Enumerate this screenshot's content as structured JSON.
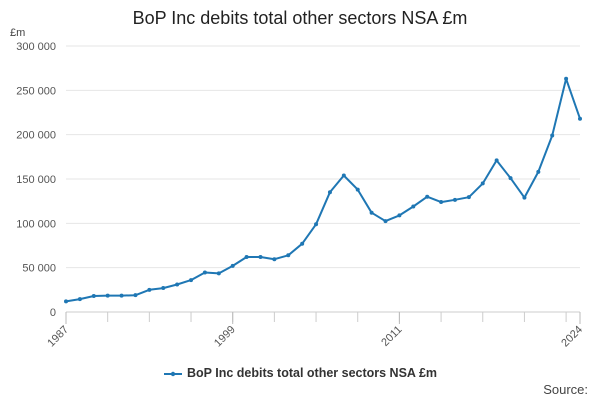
{
  "chart_data": {
    "type": "line",
    "title": "BoP Inc debits total other sectors NSA £m",
    "ylabel": "£m",
    "xlabel": "",
    "ylim": [
      0,
      300000
    ],
    "yticks": [
      0,
      50000,
      100000,
      150000,
      200000,
      250000,
      300000
    ],
    "ytick_labels": [
      "0",
      "50 000",
      "100 000",
      "150 000",
      "200 000",
      "250 000",
      "300 000"
    ],
    "xticks": [
      1987,
      1999,
      2011,
      2024
    ],
    "xtick_labels": [
      "1987",
      "1999",
      "2011",
      "2024"
    ],
    "xlim": [
      1987,
      2024
    ],
    "grid": true,
    "legend_position": "bottom",
    "series": [
      {
        "name": "BoP Inc debits total other sectors NSA £m",
        "color": "#1f77b4",
        "x": [
          1987,
          1988,
          1989,
          1990,
          1991,
          1992,
          1993,
          1994,
          1995,
          1996,
          1997,
          1998,
          1999,
          2000,
          2001,
          2002,
          2003,
          2004,
          2005,
          2006,
          2007,
          2008,
          2009,
          2010,
          2011,
          2012,
          2013,
          2014,
          2015,
          2016,
          2017,
          2018,
          2019,
          2020,
          2021,
          2022,
          2023,
          2024
        ],
        "values": [
          12000,
          14500,
          18000,
          18500,
          18500,
          19000,
          25000,
          27000,
          31000,
          36000,
          44500,
          43500,
          52000,
          62000,
          62000,
          59500,
          64000,
          77000,
          99000,
          135000,
          154000,
          138000,
          112000,
          102500,
          109000,
          119000,
          130000,
          124000,
          126500,
          129500,
          145000,
          171000,
          151000,
          129000,
          158000,
          199000,
          263000,
          218000
        ]
      }
    ]
  },
  "legend": {
    "label": "BoP Inc debits total other sectors NSA £m"
  },
  "footer": {
    "source": "Source:"
  }
}
